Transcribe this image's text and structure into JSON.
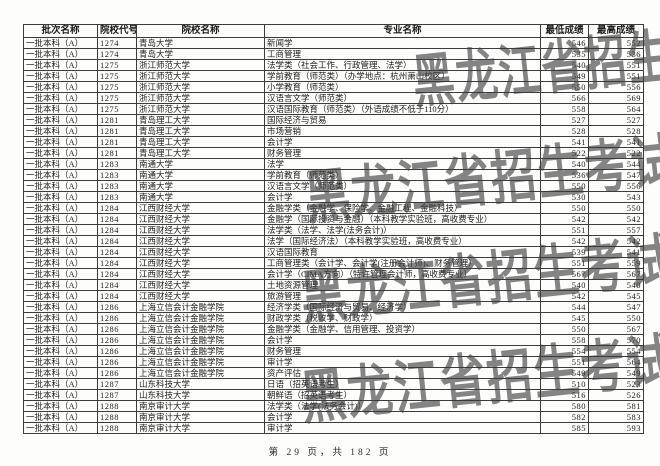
{
  "document": {
    "watermark_text": "黑龙江省招生考试院",
    "footer": "第 29 页，共 182 页"
  },
  "table": {
    "headers": [
      "批次名称",
      "院校代号",
      "院校名称",
      "专业名称",
      "最低成绩",
      "最高成绩"
    ],
    "rows": [
      [
        "一批本科（A）",
        "1274",
        "青岛大学",
        "新闻学",
        "546",
        "552"
      ],
      [
        "一批本科（A）",
        "1274",
        "青岛大学",
        "工商管理",
        "535",
        "536"
      ],
      [
        "一批本科（A）",
        "1275",
        "浙江师范大学",
        "法学类（社会工作、行政管理、法学）",
        "540",
        "551"
      ],
      [
        "一批本科（A）",
        "1275",
        "浙江师范大学",
        "学前教育（师范类）（办学地点：杭州萧山校区）",
        "549",
        "551"
      ],
      [
        "一批本科（A）",
        "1275",
        "浙江师范大学",
        "小学教育（师范类）",
        "550",
        "556"
      ],
      [
        "一批本科（A）",
        "1275",
        "浙江师范大学",
        "汉语言文学（师范类）",
        "566",
        "569"
      ],
      [
        "一批本科（A）",
        "1275",
        "浙江师范大学",
        "汉语国际教育（师范类）（外语成绩不低于110分）",
        "558",
        "564"
      ],
      [
        "一批本科（A）",
        "1281",
        "青岛理工大学",
        "国际经济与贸易",
        "527",
        "527"
      ],
      [
        "一批本科（A）",
        "1281",
        "青岛理工大学",
        "市场营销",
        "528",
        "528"
      ],
      [
        "一批本科（A）",
        "1281",
        "青岛理工大学",
        "会计学",
        "541",
        "541"
      ],
      [
        "一批本科（A）",
        "1281",
        "青岛理工大学",
        "财务管理",
        "522",
        "522"
      ],
      [
        "一批本科（A）",
        "1283",
        "南通大学",
        "法学",
        "540",
        "544"
      ],
      [
        "一批本科（A）",
        "1283",
        "南通大学",
        "学前教育（师范类）",
        "536",
        "547"
      ],
      [
        "一批本科（A）",
        "1283",
        "南通大学",
        "汉语言文学（师范类）",
        "550",
        "556"
      ],
      [
        "一批本科（A）",
        "1283",
        "南通大学",
        "会计学",
        "530",
        "543"
      ],
      [
        "一批本科（A）",
        "1284",
        "江西财经大学",
        "金融学类（金融学、保险学、金融工程、金融科技）",
        "550",
        "550"
      ],
      [
        "一批本科（A）",
        "1284",
        "江西财经大学",
        "金融学（国际投资与金融）（本科教学实验班，高收费专业）",
        "542",
        "542"
      ],
      [
        "一批本科（A）",
        "1284",
        "江西财经大学",
        "法学类（法学、法学(法务会计)）",
        "551",
        "557"
      ],
      [
        "一批本科（A）",
        "1284",
        "江西财经大学",
        "法学（国际经济法）（本科教学实验班，高收费专业）",
        "542",
        "542"
      ],
      [
        "一批本科（A）",
        "1284",
        "江西财经大学",
        "汉语国际教育",
        "539",
        "541"
      ],
      [
        "一批本科（A）",
        "1284",
        "江西财经大学",
        "工商管理类（会计学、会计学(注册会计师)、财务管理）",
        "551",
        "559"
      ],
      [
        "一批本科（A）",
        "1284",
        "江西财经大学",
        "会计学（CIMA方向）（特许管理会计师，高收费专业）",
        "567",
        "567"
      ],
      [
        "一批本科（A）",
        "1284",
        "江西财经大学",
        "土地资源管理",
        "540",
        "540"
      ],
      [
        "一批本科（A）",
        "1284",
        "江西财经大学",
        "旅游管理",
        "542",
        "545"
      ],
      [
        "一批本科（A）",
        "1286",
        "上海立信会计金融学院",
        "经济学类（国际经济与贸易、经济学）",
        "544",
        "547"
      ],
      [
        "一批本科（A）",
        "1286",
        "上海立信会计金融学院",
        "财政学类（税收学、财政学）",
        "545",
        "550"
      ],
      [
        "一批本科（A）",
        "1286",
        "上海立信会计金融学院",
        "金融学类（金融学、信用管理、投资学）",
        "550",
        "567"
      ],
      [
        "一批本科（A）",
        "1286",
        "上海立信会计金融学院",
        "会计学",
        "558",
        "570"
      ],
      [
        "一批本科（A）",
        "1286",
        "上海立信会计金融学院",
        "财务管理",
        "554",
        "554"
      ],
      [
        "一批本科（A）",
        "1286",
        "上海立信会计金融学院",
        "审计学",
        "551",
        "564"
      ],
      [
        "一批本科（A）",
        "1286",
        "上海立信会计金融学院",
        "资产评估",
        "549",
        "549"
      ],
      [
        "一批本科（A）",
        "1287",
        "山东科技大学",
        "日语（招英语考生）",
        "510",
        "523"
      ],
      [
        "一批本科（A）",
        "1287",
        "山东科技大学",
        "朝鲜语（招英语考生）",
        "516",
        "526"
      ],
      [
        "一批本科（A）",
        "1288",
        "南京审计大学",
        "法学类（法学(法务会计)）",
        "580",
        "581"
      ],
      [
        "一批本科（A）",
        "1288",
        "南京审计大学",
        "会计学",
        "582",
        "583"
      ],
      [
        "一批本科（A）",
        "1288",
        "南京审计大学",
        "审计学",
        "585",
        "593"
      ]
    ]
  }
}
